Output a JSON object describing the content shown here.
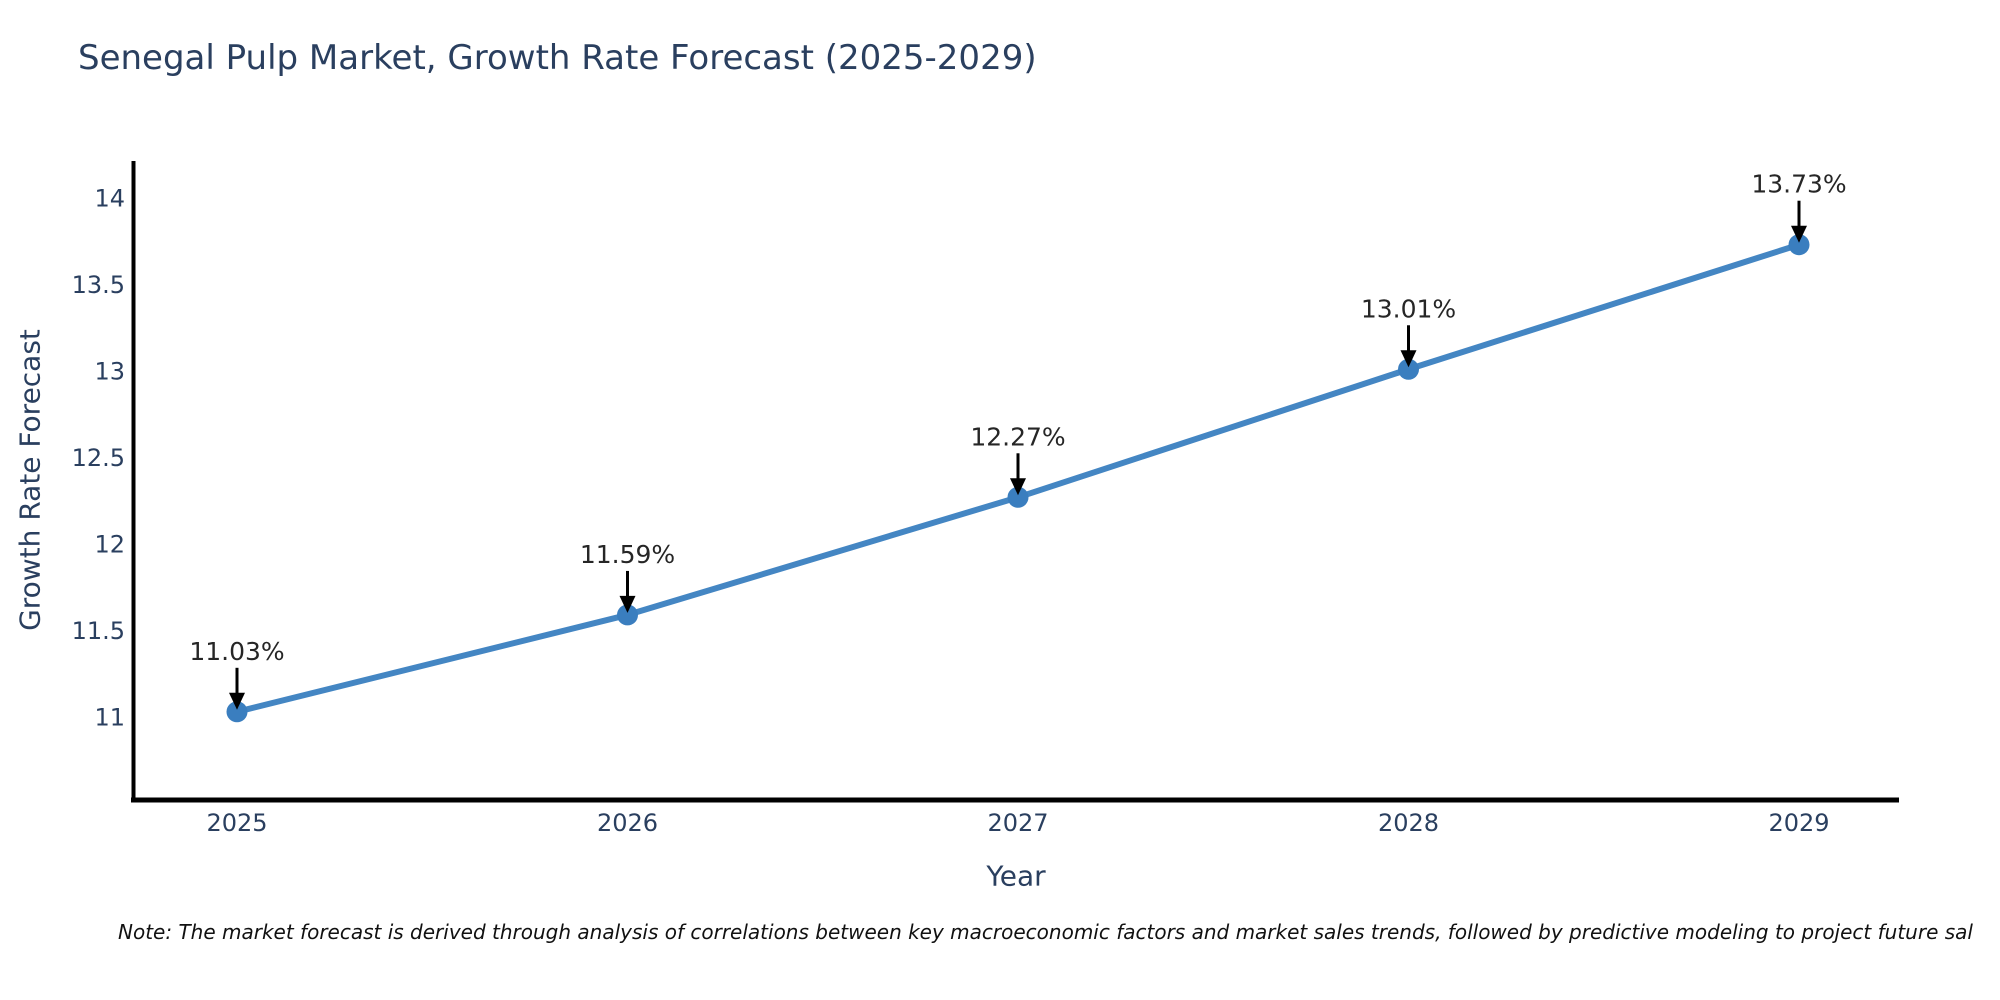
{
  "title": "Senegal Pulp Market, Growth Rate Forecast (2025-2029)",
  "note": "Note: The market forecast is derived through analysis of correlations between key macroeconomic factors and market sales trends, followed by predictive modeling to project future sal",
  "chart_data": {
    "type": "line",
    "title": "Senegal Pulp Market, Growth Rate Forecast (2025-2029)",
    "xlabel": "Year",
    "ylabel": "Growth Rate Forecast",
    "x": [
      2025,
      2026,
      2027,
      2028,
      2029
    ],
    "x_tick_labels": [
      "2025",
      "2026",
      "2027",
      "2028",
      "2029"
    ],
    "series": [
      {
        "name": "Growth Rate Forecast",
        "values": [
          11.03,
          11.59,
          12.27,
          13.01,
          13.73
        ],
        "point_labels": [
          "11.03%",
          "11.59%",
          "12.27%",
          "13.01%",
          "13.73%"
        ]
      }
    ],
    "yticks": [
      11,
      11.5,
      12,
      12.5,
      13,
      13.5,
      14
    ],
    "ytick_labels": [
      "11",
      "11.5",
      "12",
      "12.5",
      "13",
      "13.5",
      "14"
    ],
    "ylim": [
      10.5,
      14.2
    ],
    "grid": false,
    "legend_position": "none",
    "colors": {
      "line": "#4486c3",
      "marker": "#3a7ebf",
      "axis_line": "#000000",
      "tick_text": "#2a3f5f",
      "annotation_text": "#262626",
      "annotation_arrow": "#000000",
      "title_text": "#2a3f5f",
      "background": "#ffffff"
    }
  }
}
